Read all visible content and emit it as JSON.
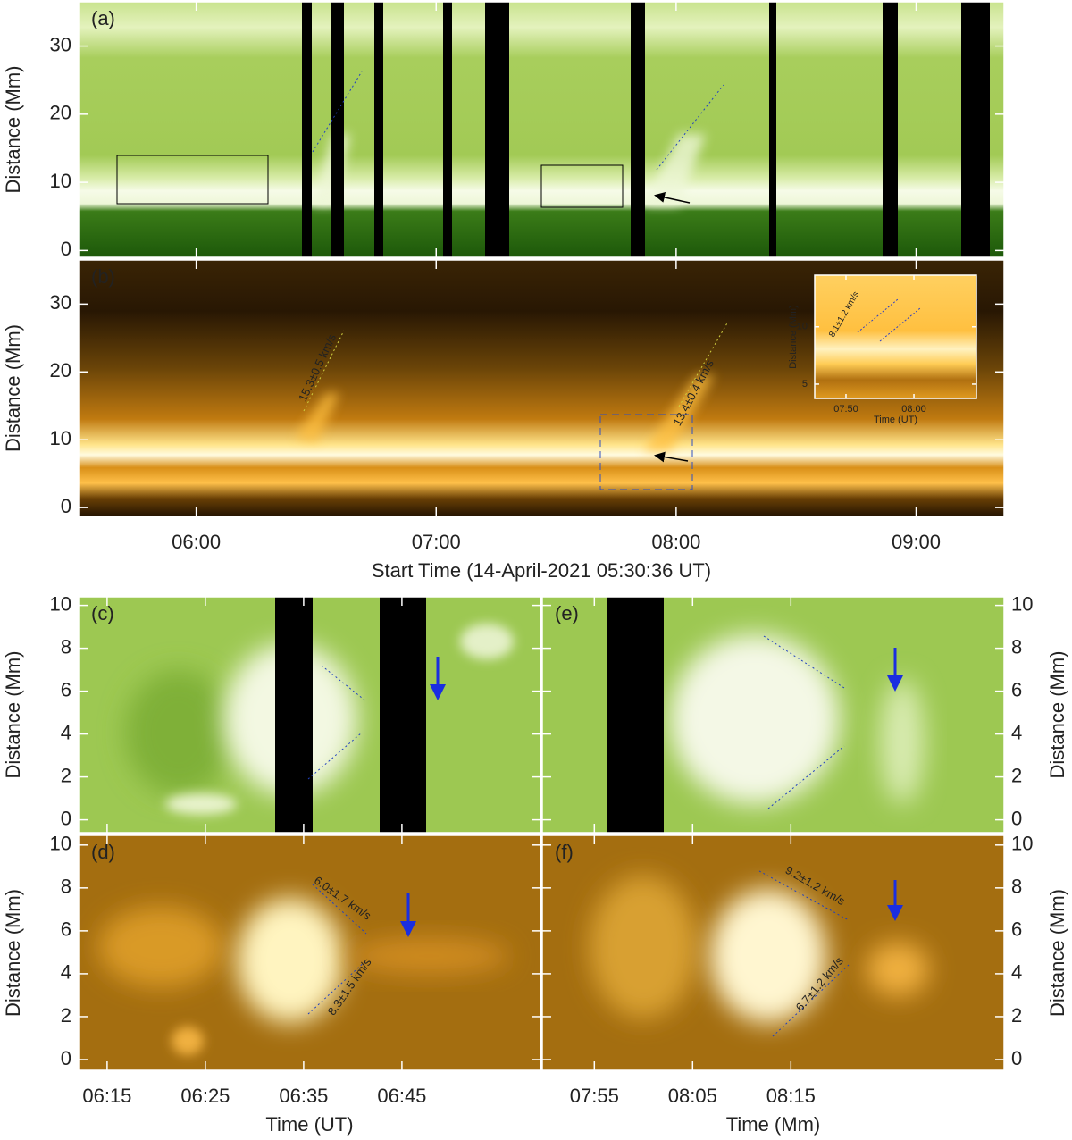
{
  "chart_data": [
    {
      "type": "heatmap",
      "panel_label": "(a)",
      "ylabel": "Distance (Mm)",
      "ylim": [
        -1,
        36.5
      ],
      "yticks": [
        0,
        10,
        20,
        30
      ],
      "xlim": [
        330.6,
        562
      ]
    },
    {
      "type": "heatmap",
      "panel_label": "(b)",
      "ylabel": "Distance (Mm)",
      "ylim": [
        -1.3,
        36.5
      ],
      "yticks": [
        0,
        10,
        20,
        30
      ],
      "xlim": [
        330.6,
        562
      ],
      "xticks": [
        {
          "value": 360,
          "label": "06:00"
        },
        {
          "value": 420,
          "label": "07:00"
        },
        {
          "value": 480,
          "label": "08:00"
        },
        {
          "value": 540,
          "label": "09:00"
        }
      ],
      "xlabel": "Start Time (14-April-2021 05:30:36 UT)",
      "annotations": [
        "15.3±0.5 km/s",
        "13.4±0.4 km/s"
      ]
    },
    {
      "type": "heatmap",
      "ylabel": "Distance (Mm)",
      "xlabel": "Time (UT)",
      "ylim": [
        3.75,
        14.5
      ],
      "yticks": [
        5,
        10
      ],
      "xlim": [
        465.4,
        489.2
      ],
      "xticks": [
        {
          "value": 470,
          "label": "07:50"
        },
        {
          "value": 480,
          "label": "08:00"
        }
      ],
      "annotations": [
        "8.1±1.2 km/s"
      ]
    },
    {
      "type": "heatmap",
      "panel_label": "(c)",
      "ylabel": "Distance (Mm)",
      "ylim": [
        -0.6,
        10.4
      ],
      "yticks": [
        0,
        2,
        4,
        6,
        8,
        10
      ],
      "xlim": [
        372.1,
        419.1
      ]
    },
    {
      "type": "heatmap",
      "panel_label": "(d)",
      "ylabel": "Distance (Mm)",
      "ylim": [
        -0.5,
        10.45
      ],
      "yticks": [
        0,
        2,
        4,
        6,
        8,
        10
      ],
      "xlim": [
        372.1,
        419.1
      ],
      "xticks": [
        {
          "value": 375,
          "label": "06:15"
        },
        {
          "value": 385,
          "label": "06:25"
        },
        {
          "value": 395,
          "label": "06:35"
        },
        {
          "value": 405,
          "label": "06:45"
        }
      ],
      "xlabel": "Time (UT)",
      "annotations": [
        "6.0±1.7 km/s",
        "8.3±1.5 km/s"
      ]
    },
    {
      "type": "heatmap",
      "panel_label": "(e)",
      "ylabel": "Distance (Mm)",
      "yaxis_side": "right",
      "ylim": [
        -0.6,
        10.4
      ],
      "yticks": [
        0,
        2,
        4,
        6,
        8,
        10
      ],
      "xlim": [
        469.7,
        516.7
      ]
    },
    {
      "type": "heatmap",
      "panel_label": "(f)",
      "ylabel": "Distance (Mm)",
      "yaxis_side": "right",
      "ylim": [
        -0.5,
        10.45
      ],
      "yticks": [
        0,
        2,
        4,
        6,
        8,
        10
      ],
      "xlim": [
        469.7,
        516.7
      ],
      "xticks": [
        {
          "value": 475,
          "label": "07:55"
        },
        {
          "value": 485,
          "label": "08:05"
        },
        {
          "value": 495,
          "label": "08:15"
        }
      ],
      "xlabel": "Time (Mm)",
      "annotations": [
        "9.2±1.2 km/s",
        "6.7±1.2 km/s"
      ]
    }
  ]
}
